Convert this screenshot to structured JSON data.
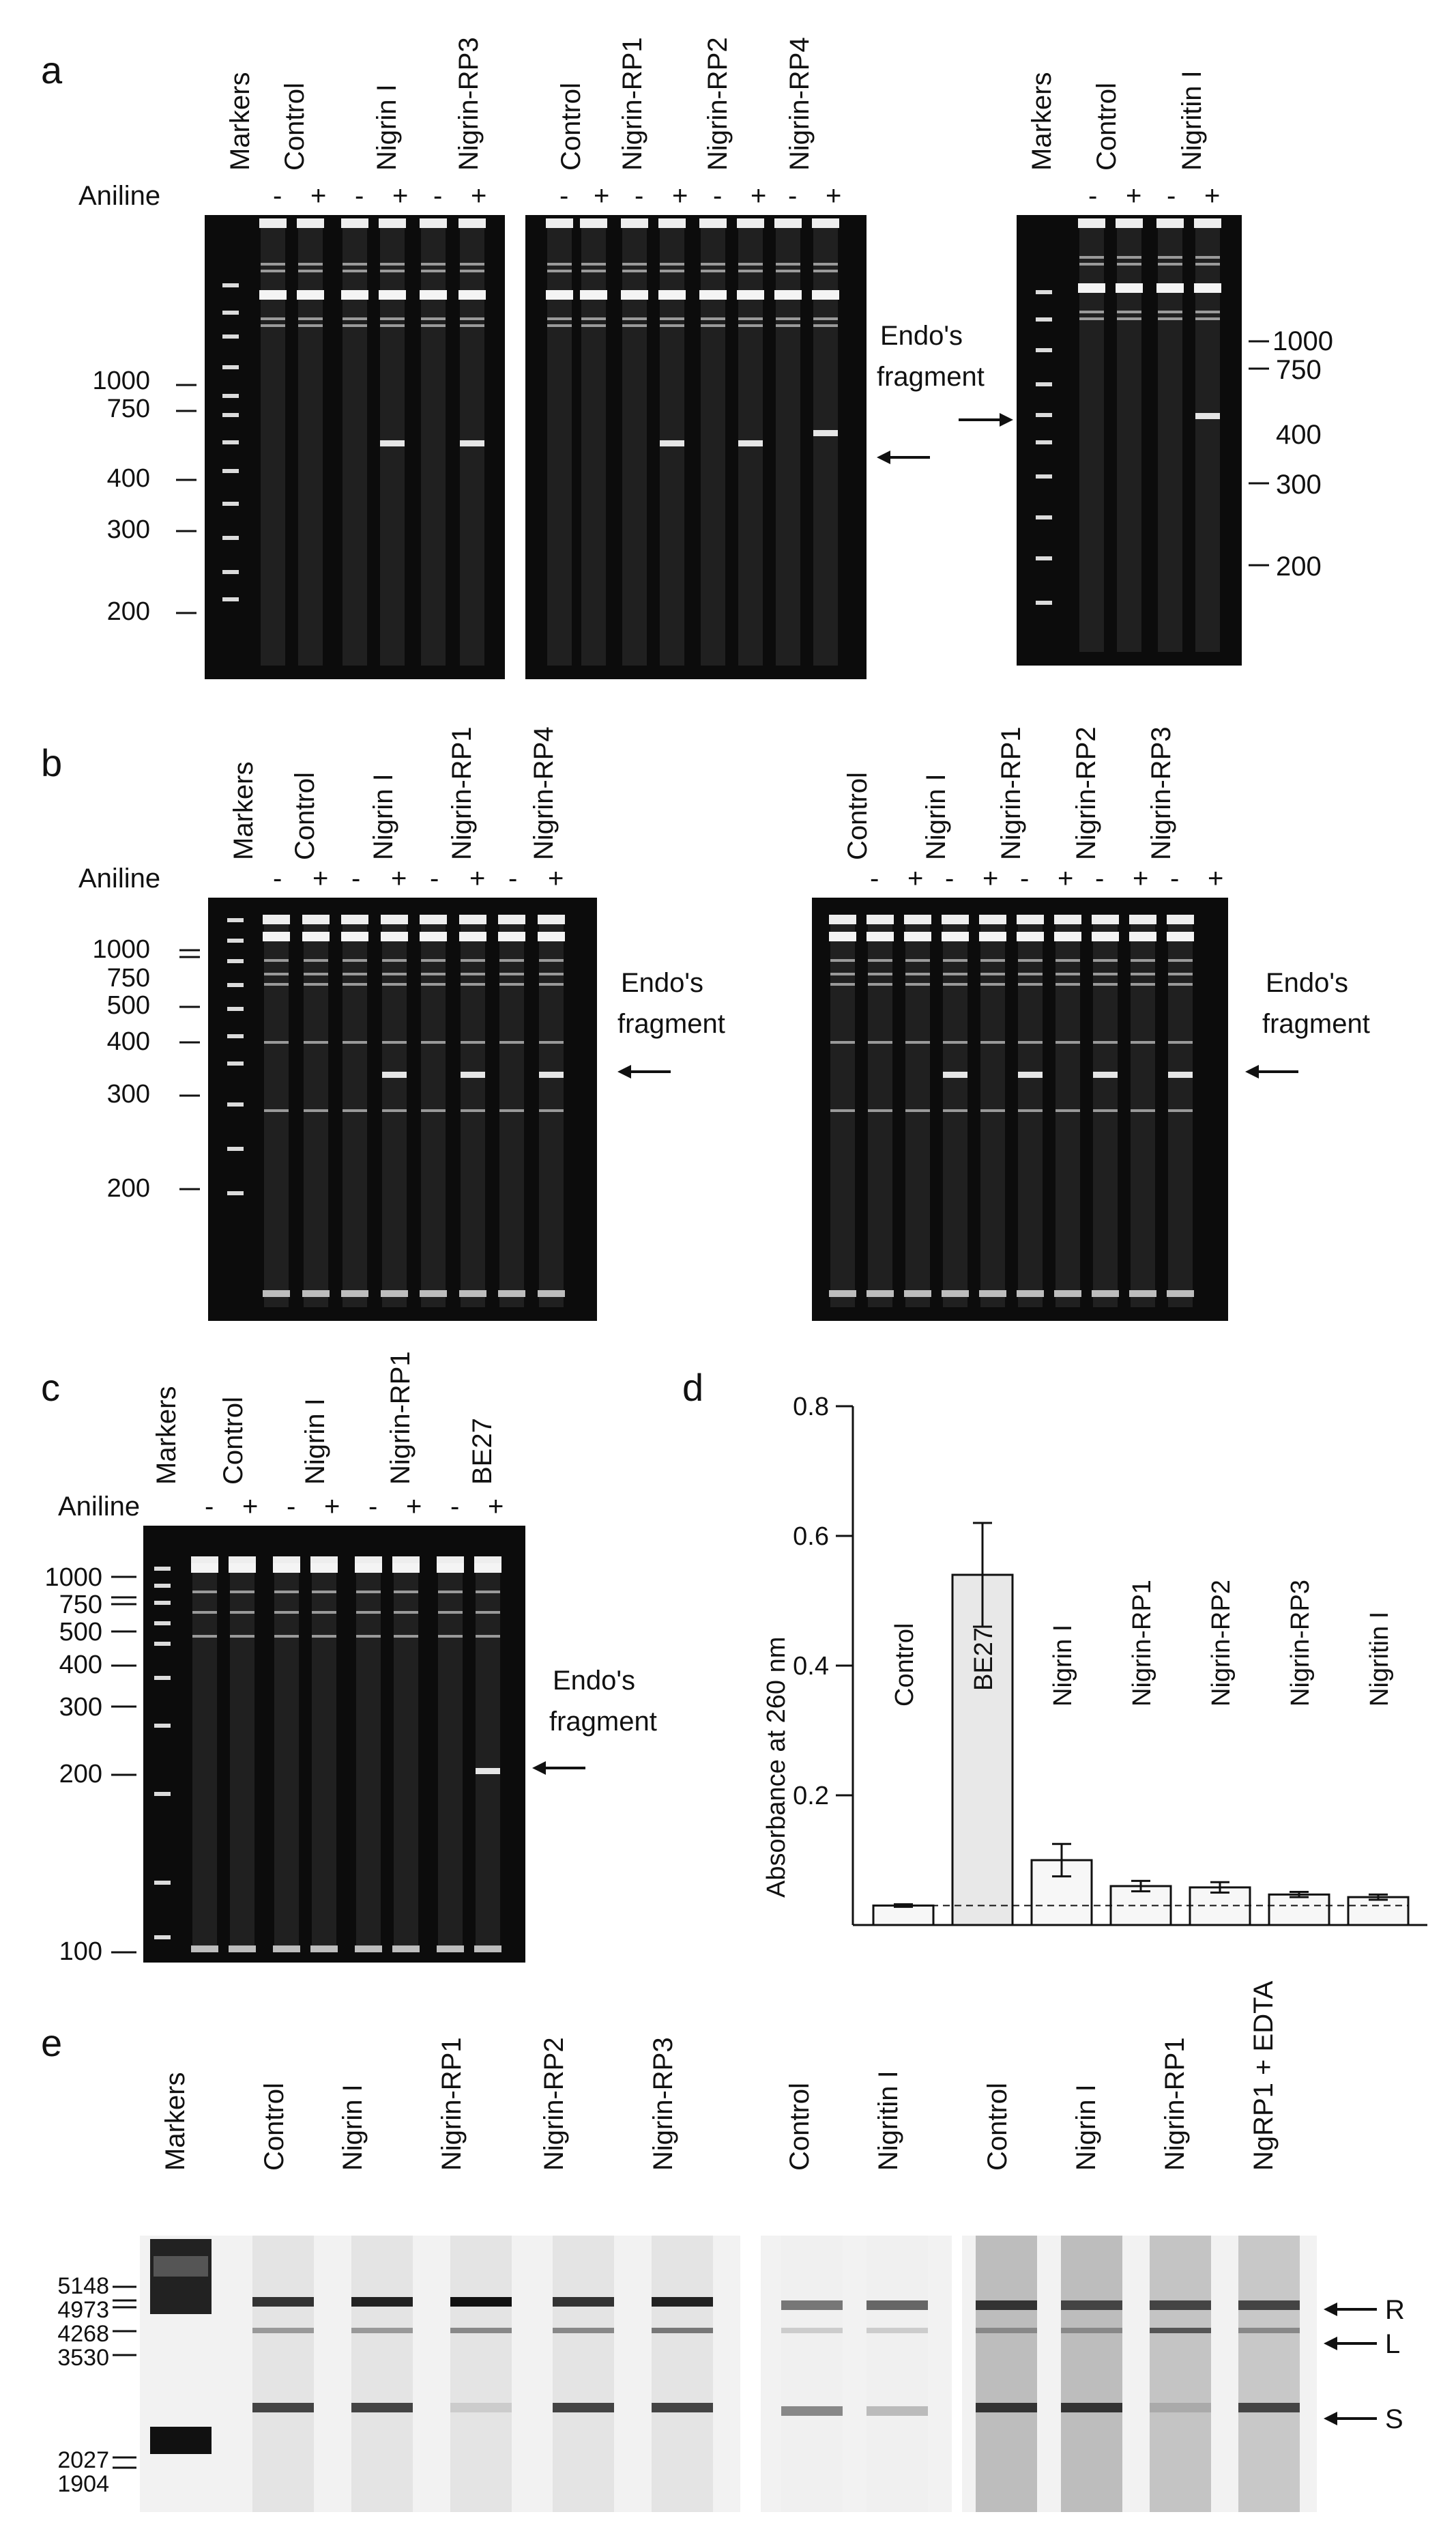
{
  "figure": {
    "panel_a": {
      "letter": "a",
      "aniline_label": "Aniline",
      "gel1_lanes": [
        "Markers",
        "Control",
        "Nigrin I",
        "Nigrin-RP3"
      ],
      "gel2_lanes": [
        "Control",
        "Nigrin-RP1",
        "Nigrin-RP2",
        "Nigrin-RP4"
      ],
      "gel3_lanes": [
        "Markers",
        "Control",
        "Nigritin I"
      ],
      "signs": [
        "-",
        "+"
      ],
      "ladder_left": [
        "1000",
        "750",
        "400",
        "300",
        "200"
      ],
      "ladder_right": [
        "1000",
        "750",
        "400",
        "300",
        "200"
      ],
      "endo_label_1": "Endo's",
      "endo_label_2": "fragment"
    },
    "panel_b": {
      "letter": "b",
      "aniline_label": "Aniline",
      "gel1_lanes": [
        "Markers",
        "Control",
        "Nigrin I",
        "Nigrin-RP1",
        "Nigrin-RP4"
      ],
      "gel2_lanes": [
        "Control",
        "Nigrin I",
        "Nigrin-RP1",
        "Nigrin-RP2",
        "Nigrin-RP3"
      ],
      "ladder": [
        "1000",
        "750",
        "500",
        "400",
        "300",
        "200"
      ],
      "endo_label_1": "Endo's",
      "endo_label_2": "fragment"
    },
    "panel_c": {
      "letter": "c",
      "aniline_label": "Aniline",
      "lanes": [
        "Markers",
        "Control",
        "Nigrin I",
        "Nigrin-RP1",
        "BE27"
      ],
      "ladder": [
        "1000",
        "750",
        "500",
        "400",
        "300",
        "200",
        "100"
      ],
      "endo_label_1": "Endo's",
      "endo_label_2": "fragment"
    },
    "panel_d": {
      "letter": "d"
    },
    "panel_e": {
      "letter": "e",
      "gel1_lanes": [
        "Markers",
        "Control",
        "Nigrin I",
        "Nigrin-RP1",
        "Nigrin-RP2",
        "Nigrin-RP3"
      ],
      "gel2_lanes": [
        "Control",
        "Nigritin I"
      ],
      "gel3_lanes": [
        "Control",
        "Nigrin I",
        "Nigrin-RP1",
        "NgRP1 + EDTA"
      ],
      "ladder": [
        "5148",
        "4973",
        "4268",
        "3530",
        "2027",
        "1904"
      ],
      "band_labels": [
        "R",
        "L",
        "S"
      ]
    }
  },
  "chart_data": {
    "type": "bar",
    "categories": [
      "Control",
      "BE27",
      "Nigrin I",
      "Nigrin-RP1",
      "Nigrin-RP2",
      "Nigrin-RP3",
      "Nigritin I"
    ],
    "values": [
      0.03,
      0.54,
      0.1,
      0.06,
      0.058,
      0.047,
      0.043
    ],
    "errors": [
      0.002,
      0.08,
      0.025,
      0.008,
      0.008,
      0.004,
      0.004
    ],
    "highlight_color": "#e8e8e8",
    "baseline_dashed": 0.03,
    "ylabel": "Absorbance at 260 nm",
    "yticks": [
      "0.8",
      "0.6",
      "0.4",
      "0.2"
    ],
    "ylim": [
      0,
      0.8
    ],
    "grid": false
  }
}
